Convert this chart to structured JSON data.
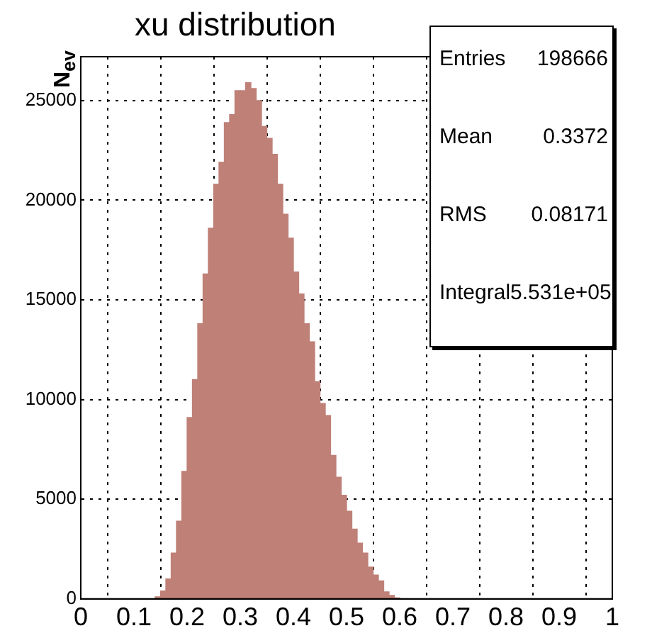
{
  "chart_data": {
    "type": "histogram",
    "title": "xu distribution",
    "ylabel": "N$_{ev}$",
    "bins": [
      0,
      0.01,
      0.02,
      0.03,
      0.04,
      0.05,
      0.06,
      0.07,
      0.08,
      0.09,
      0.1,
      0.11,
      0.12,
      0.13,
      0.14,
      0.15,
      0.16,
      0.17,
      0.18,
      0.19,
      0.2,
      0.21,
      0.22,
      0.23,
      0.24,
      0.25,
      0.26,
      0.27,
      0.28,
      0.29,
      0.3,
      0.31,
      0.32,
      0.33,
      0.34,
      0.35,
      0.36,
      0.37,
      0.38,
      0.39,
      0.4,
      0.41,
      0.42,
      0.43,
      0.44,
      0.45,
      0.46,
      0.47,
      0.48,
      0.49,
      0.5,
      0.51,
      0.52,
      0.53,
      0.54,
      0.55,
      0.56,
      0.57,
      0.58,
      0.59,
      0.6,
      0.61,
      0.62,
      0.63,
      0.64,
      0.65,
      0.66,
      0.67,
      0.68,
      0.69,
      0.7,
      0.71,
      0.72,
      0.73,
      0.74,
      0.75,
      0.76,
      0.77,
      0.78,
      0.79,
      0.8,
      0.81,
      0.82,
      0.83,
      0.84,
      0.85,
      0.86,
      0.87,
      0.88,
      0.89,
      0.9,
      0.91,
      0.92,
      0.93,
      0.94,
      0.95,
      0.96,
      0.97,
      0.98,
      0.99,
      1
    ],
    "values": [
      0,
      0,
      0,
      0,
      0,
      0,
      0,
      0,
      0,
      0,
      0,
      0,
      0,
      0,
      100,
      400,
      1000,
      2300,
      3900,
      6400,
      9100,
      11000,
      13800,
      16300,
      18600,
      20800,
      21900,
      23900,
      24300,
      25500,
      25500,
      25900,
      25600,
      25000,
      23700,
      23100,
      22300,
      20800,
      19300,
      18100,
      16400,
      15300,
      13800,
      12900,
      10900,
      9800,
      9200,
      7200,
      6100,
      5200,
      4400,
      3500,
      2800,
      2300,
      1600,
      1200,
      900,
      350,
      170,
      50,
      0,
      0,
      0,
      0,
      0,
      0,
      0,
      0,
      0,
      0,
      0,
      0,
      0,
      0,
      0,
      0,
      0,
      0,
      0,
      0,
      0,
      0,
      0,
      0,
      0,
      0,
      0,
      0,
      0,
      0,
      0,
      0,
      0,
      0,
      0,
      0,
      0,
      0,
      0,
      0
    ],
    "color": "#bf8077",
    "xlim": [
      0,
      1
    ],
    "xticks": [
      0,
      0.1,
      0.2,
      0.3,
      0.4,
      0.5,
      0.6,
      0.7,
      0.8,
      0.9,
      1
    ],
    "ylim": [
      0,
      27200
    ],
    "yticks": [
      0,
      5000,
      10000,
      15000,
      20000,
      25000
    ],
    "grid": true,
    "annotations": [
      "Entries",
      "198666",
      "Mean",
      "0.3372",
      "RMS",
      "0.08171",
      "Integral",
      "5.531e+05"
    ]
  }
}
